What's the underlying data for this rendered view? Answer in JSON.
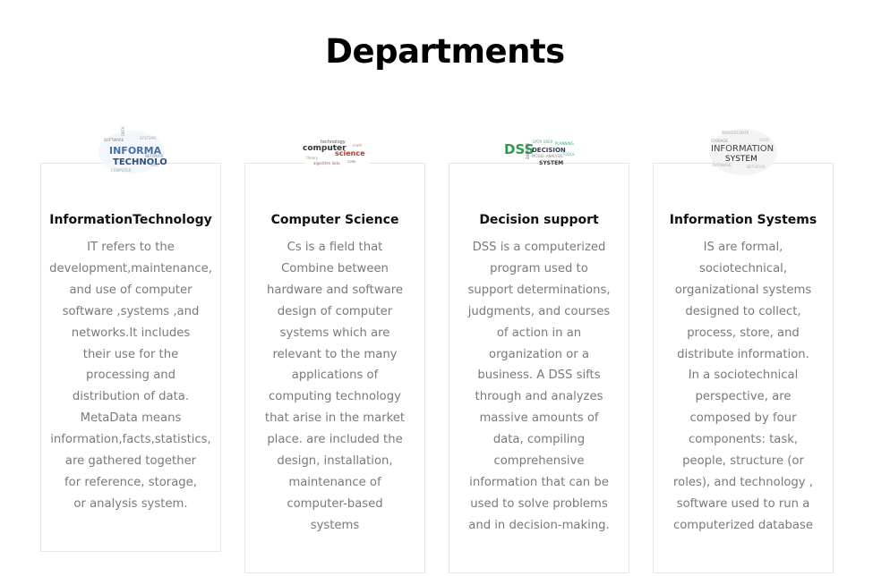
{
  "header": {
    "title": "Departments"
  },
  "departments": [
    {
      "title": "InformationTechnology",
      "icon": "information-technology-word-cloud-icon",
      "lines": [
        "IT refers to the",
        "development,maintenance,",
        "and use of computer",
        "software ,systems ,and",
        "networks.It includes",
        "their use for the",
        "processing and",
        "distribution of data.",
        "MetaData means",
        "information,facts,statistics,",
        "are gathered together",
        "for reference, storage,",
        "or analysis system."
      ]
    },
    {
      "title": "Computer Science",
      "icon": "computer-science-word-cloud-icon",
      "lines": [
        "Cs is a field that",
        "Combine between",
        "hardware and software",
        "design of computer",
        "systems which are",
        "relevant to the many",
        "applications of",
        "computing technology",
        "that arise in the market",
        "place. are included the",
        "design, installation,",
        "maintenance of",
        "computer-based",
        "systems"
      ]
    },
    {
      "title": "Decision support",
      "icon": "decision-support-word-cloud-icon",
      "lines": [
        "DSS is a computerized",
        "program used to",
        "support determinations,",
        "judgments, and courses",
        "of action in an",
        "organization or a",
        "business. A DSS sifts",
        "through and analyzes",
        "massive amounts of",
        "data, compiling",
        "comprehensive",
        "information that can be",
        "used to solve problems",
        "and in decision-making."
      ]
    },
    {
      "title": "Information Systems",
      "icon": "information-system-word-cloud-icon",
      "lines": [
        "IS are formal,",
        "sociotechnical,",
        "organizational systems",
        "designed to collect,",
        "process, store, and",
        "distribute information.",
        "In a sociotechnical",
        "perspective, are",
        "composed by four",
        "components: task,",
        "people, structure (or",
        "roles), and technology ,",
        "software used to run a",
        "computerized database"
      ]
    }
  ]
}
